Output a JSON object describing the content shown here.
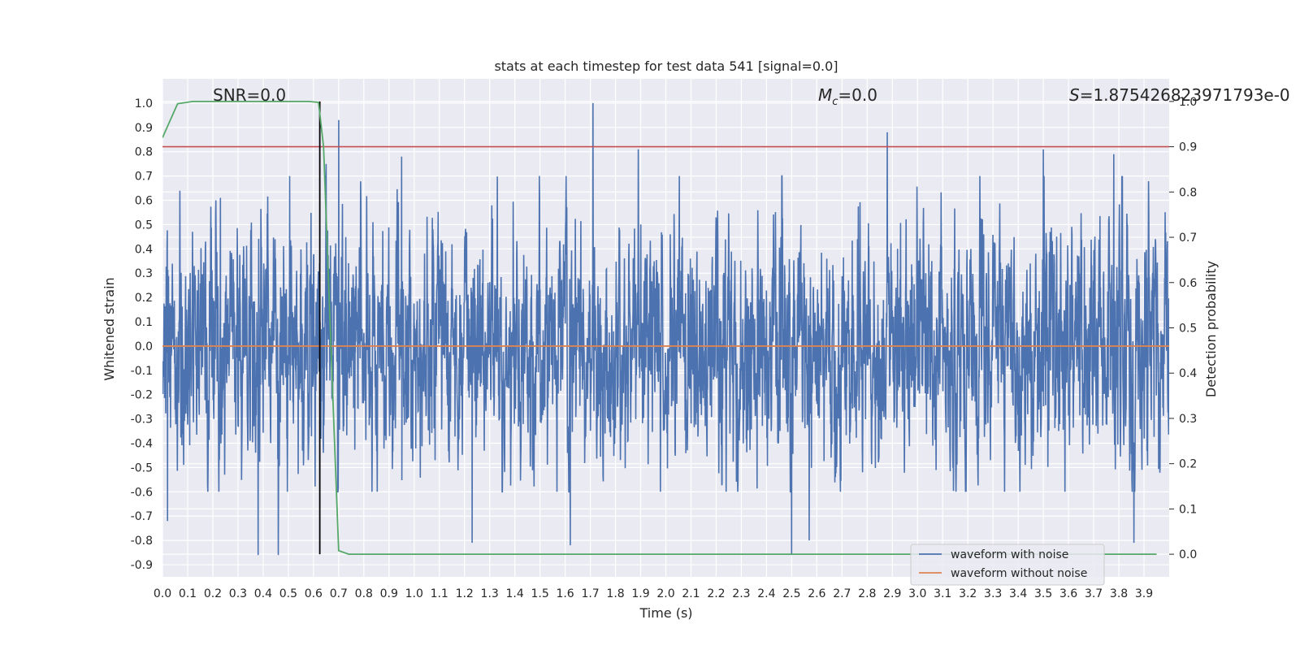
{
  "chart_data": {
    "type": "line",
    "title": "stats at each timestep for test data 541 [signal=0.0]",
    "xlabel": "Time (s)",
    "ylabel": "Whitened strain",
    "y2label": "Detection probability",
    "xlim": [
      0.0,
      4.0
    ],
    "ylim": [
      -0.95,
      1.1
    ],
    "y2lim": [
      -0.05,
      1.05
    ],
    "x_ticks": [
      "0.0",
      "0.1",
      "0.2",
      "0.3",
      "0.4",
      "0.5",
      "0.6",
      "0.7",
      "0.8",
      "0.9",
      "1.0",
      "1.1",
      "1.2",
      "1.3",
      "1.4",
      "1.5",
      "1.6",
      "1.7",
      "1.8",
      "1.9",
      "2.0",
      "2.1",
      "2.2",
      "2.3",
      "2.4",
      "2.5",
      "2.6",
      "2.7",
      "2.8",
      "2.9",
      "3.0",
      "3.1",
      "3.2",
      "3.3",
      "3.4",
      "3.5",
      "3.6",
      "3.7",
      "3.8",
      "3.9"
    ],
    "y_ticks": [
      "1.0",
      "0.9",
      "0.8",
      "0.7",
      "0.6",
      "0.5",
      "0.4",
      "0.3",
      "0.2",
      "0.1",
      "0.0",
      "-0.1",
      "-0.2",
      "-0.3",
      "-0.4",
      "-0.5",
      "-0.6",
      "-0.7",
      "-0.8",
      "-0.9"
    ],
    "y2_ticks": [
      "1.0",
      "0.9",
      "0.8",
      "0.7",
      "0.6",
      "0.5",
      "0.4",
      "0.3",
      "0.2",
      "0.1",
      "0.0"
    ],
    "annotations": {
      "snr": "SNR=0.0",
      "mc_symbol": "M",
      "mc_sub": "c",
      "mc_value": "=0.0",
      "s_symbol": "S",
      "s_value": "=1.875426823971793e-0"
    },
    "threshold_y2": 0.9,
    "marker_x": 0.625,
    "legend": {
      "placement": "lower-right",
      "entries": [
        "waveform with noise",
        "waveform without noise"
      ]
    },
    "colors": {
      "noise": "#4c72b0",
      "clean": "#dd8452",
      "probability": "#55a868",
      "threshold": "#c44e52",
      "marker": "#000000",
      "background": "#eaeaf2",
      "grid": "#ffffff"
    },
    "series": [
      {
        "name": "waveform with noise",
        "note_values": "dense noise, approx 8192 samples over 0-4 s, amplitude mostly within [-0.5, 0.6] with spikes to ~1.0 and ~-0.87",
        "peaks": [
          {
            "x": 0.23,
            "y": 0.61
          },
          {
            "x": 0.65,
            "y": 0.75
          },
          {
            "x": 0.7,
            "y": 0.93
          },
          {
            "x": 0.95,
            "y": 0.78
          },
          {
            "x": 1.71,
            "y": 1.0
          },
          {
            "x": 1.89,
            "y": 0.81
          },
          {
            "x": 2.88,
            "y": 0.88
          },
          {
            "x": 3.5,
            "y": 0.81
          },
          {
            "x": 3.78,
            "y": 0.79
          }
        ],
        "troughs": [
          {
            "x": 0.02,
            "y": -0.72
          },
          {
            "x": 0.38,
            "y": -0.86
          },
          {
            "x": 0.46,
            "y": -0.86
          },
          {
            "x": 1.23,
            "y": -0.81
          },
          {
            "x": 1.62,
            "y": -0.82
          },
          {
            "x": 2.5,
            "y": -0.86
          },
          {
            "x": 2.57,
            "y": -0.8
          },
          {
            "x": 3.86,
            "y": -0.81
          }
        ]
      },
      {
        "name": "waveform without noise",
        "x": [
          0.0,
          4.0
        ],
        "y": [
          0.0,
          0.0
        ]
      },
      {
        "name": "detection probability",
        "axis": "y2",
        "x": [
          0.0,
          0.06,
          0.12,
          0.2,
          0.3,
          0.4,
          0.5,
          0.58,
          0.62,
          0.64,
          0.66,
          0.68,
          0.7,
          0.74,
          0.8,
          1.0,
          2.0,
          3.0,
          3.95
        ],
        "y": [
          0.92,
          0.995,
          1.0,
          1.0,
          1.0,
          1.0,
          1.0,
          1.0,
          0.998,
          0.9,
          0.6,
          0.3,
          0.008,
          0.0,
          0.0,
          0.0,
          0.0,
          0.0,
          0.0
        ]
      }
    ]
  }
}
